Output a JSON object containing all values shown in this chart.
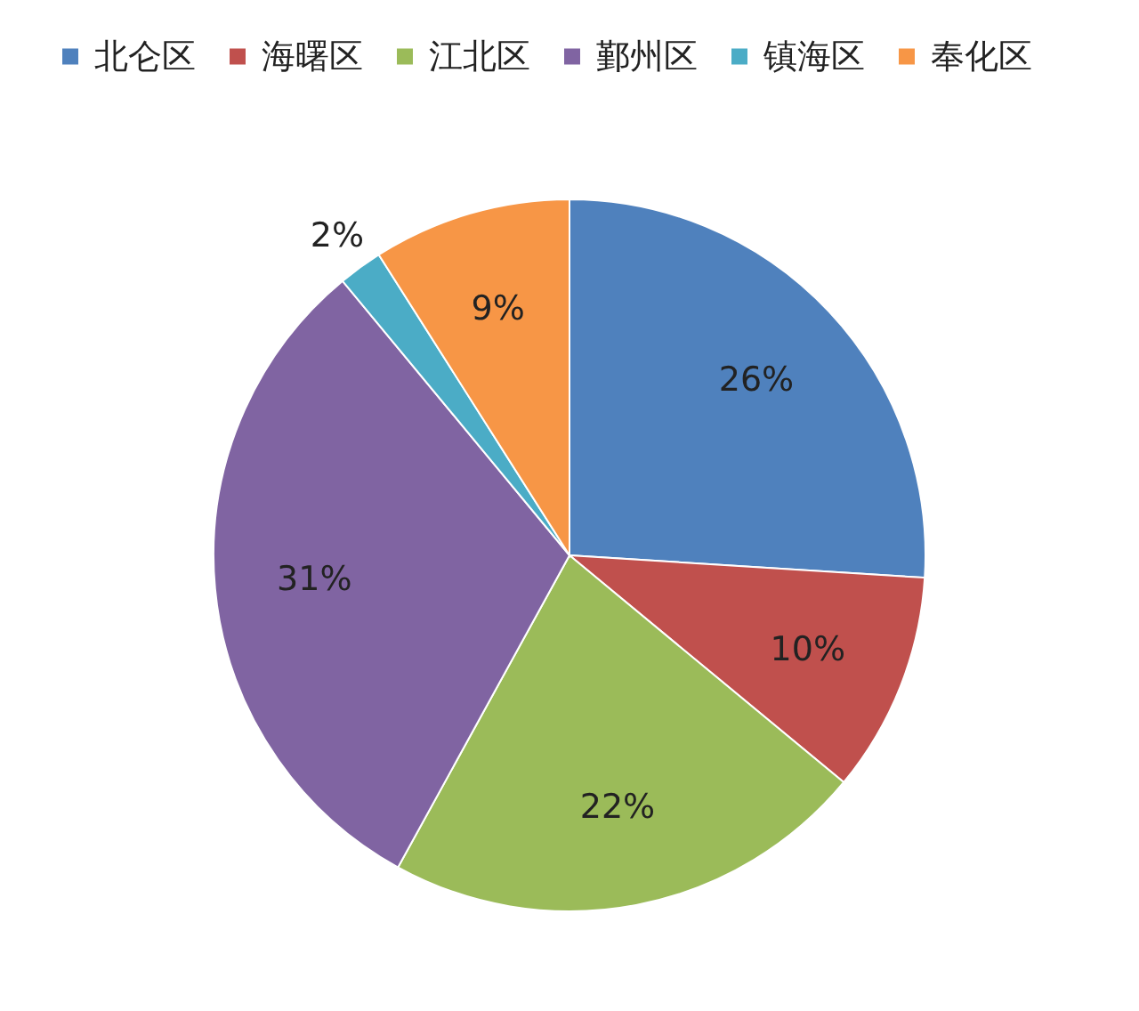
{
  "chart_data": {
    "type": "pie",
    "categories": [
      "北仑区",
      "海曙区",
      "江北区",
      "鄞州区",
      "镇海区",
      "奉化区"
    ],
    "values": [
      26,
      10,
      22,
      31,
      2,
      9
    ],
    "colors": [
      "#4f81bd",
      "#c0504d",
      "#9bbb59",
      "#8064a2",
      "#4bacc6",
      "#f79646"
    ],
    "value_labels": [
      "26%",
      "10%",
      "22%",
      "31%",
      "2%",
      "9%"
    ],
    "legend": "top"
  }
}
